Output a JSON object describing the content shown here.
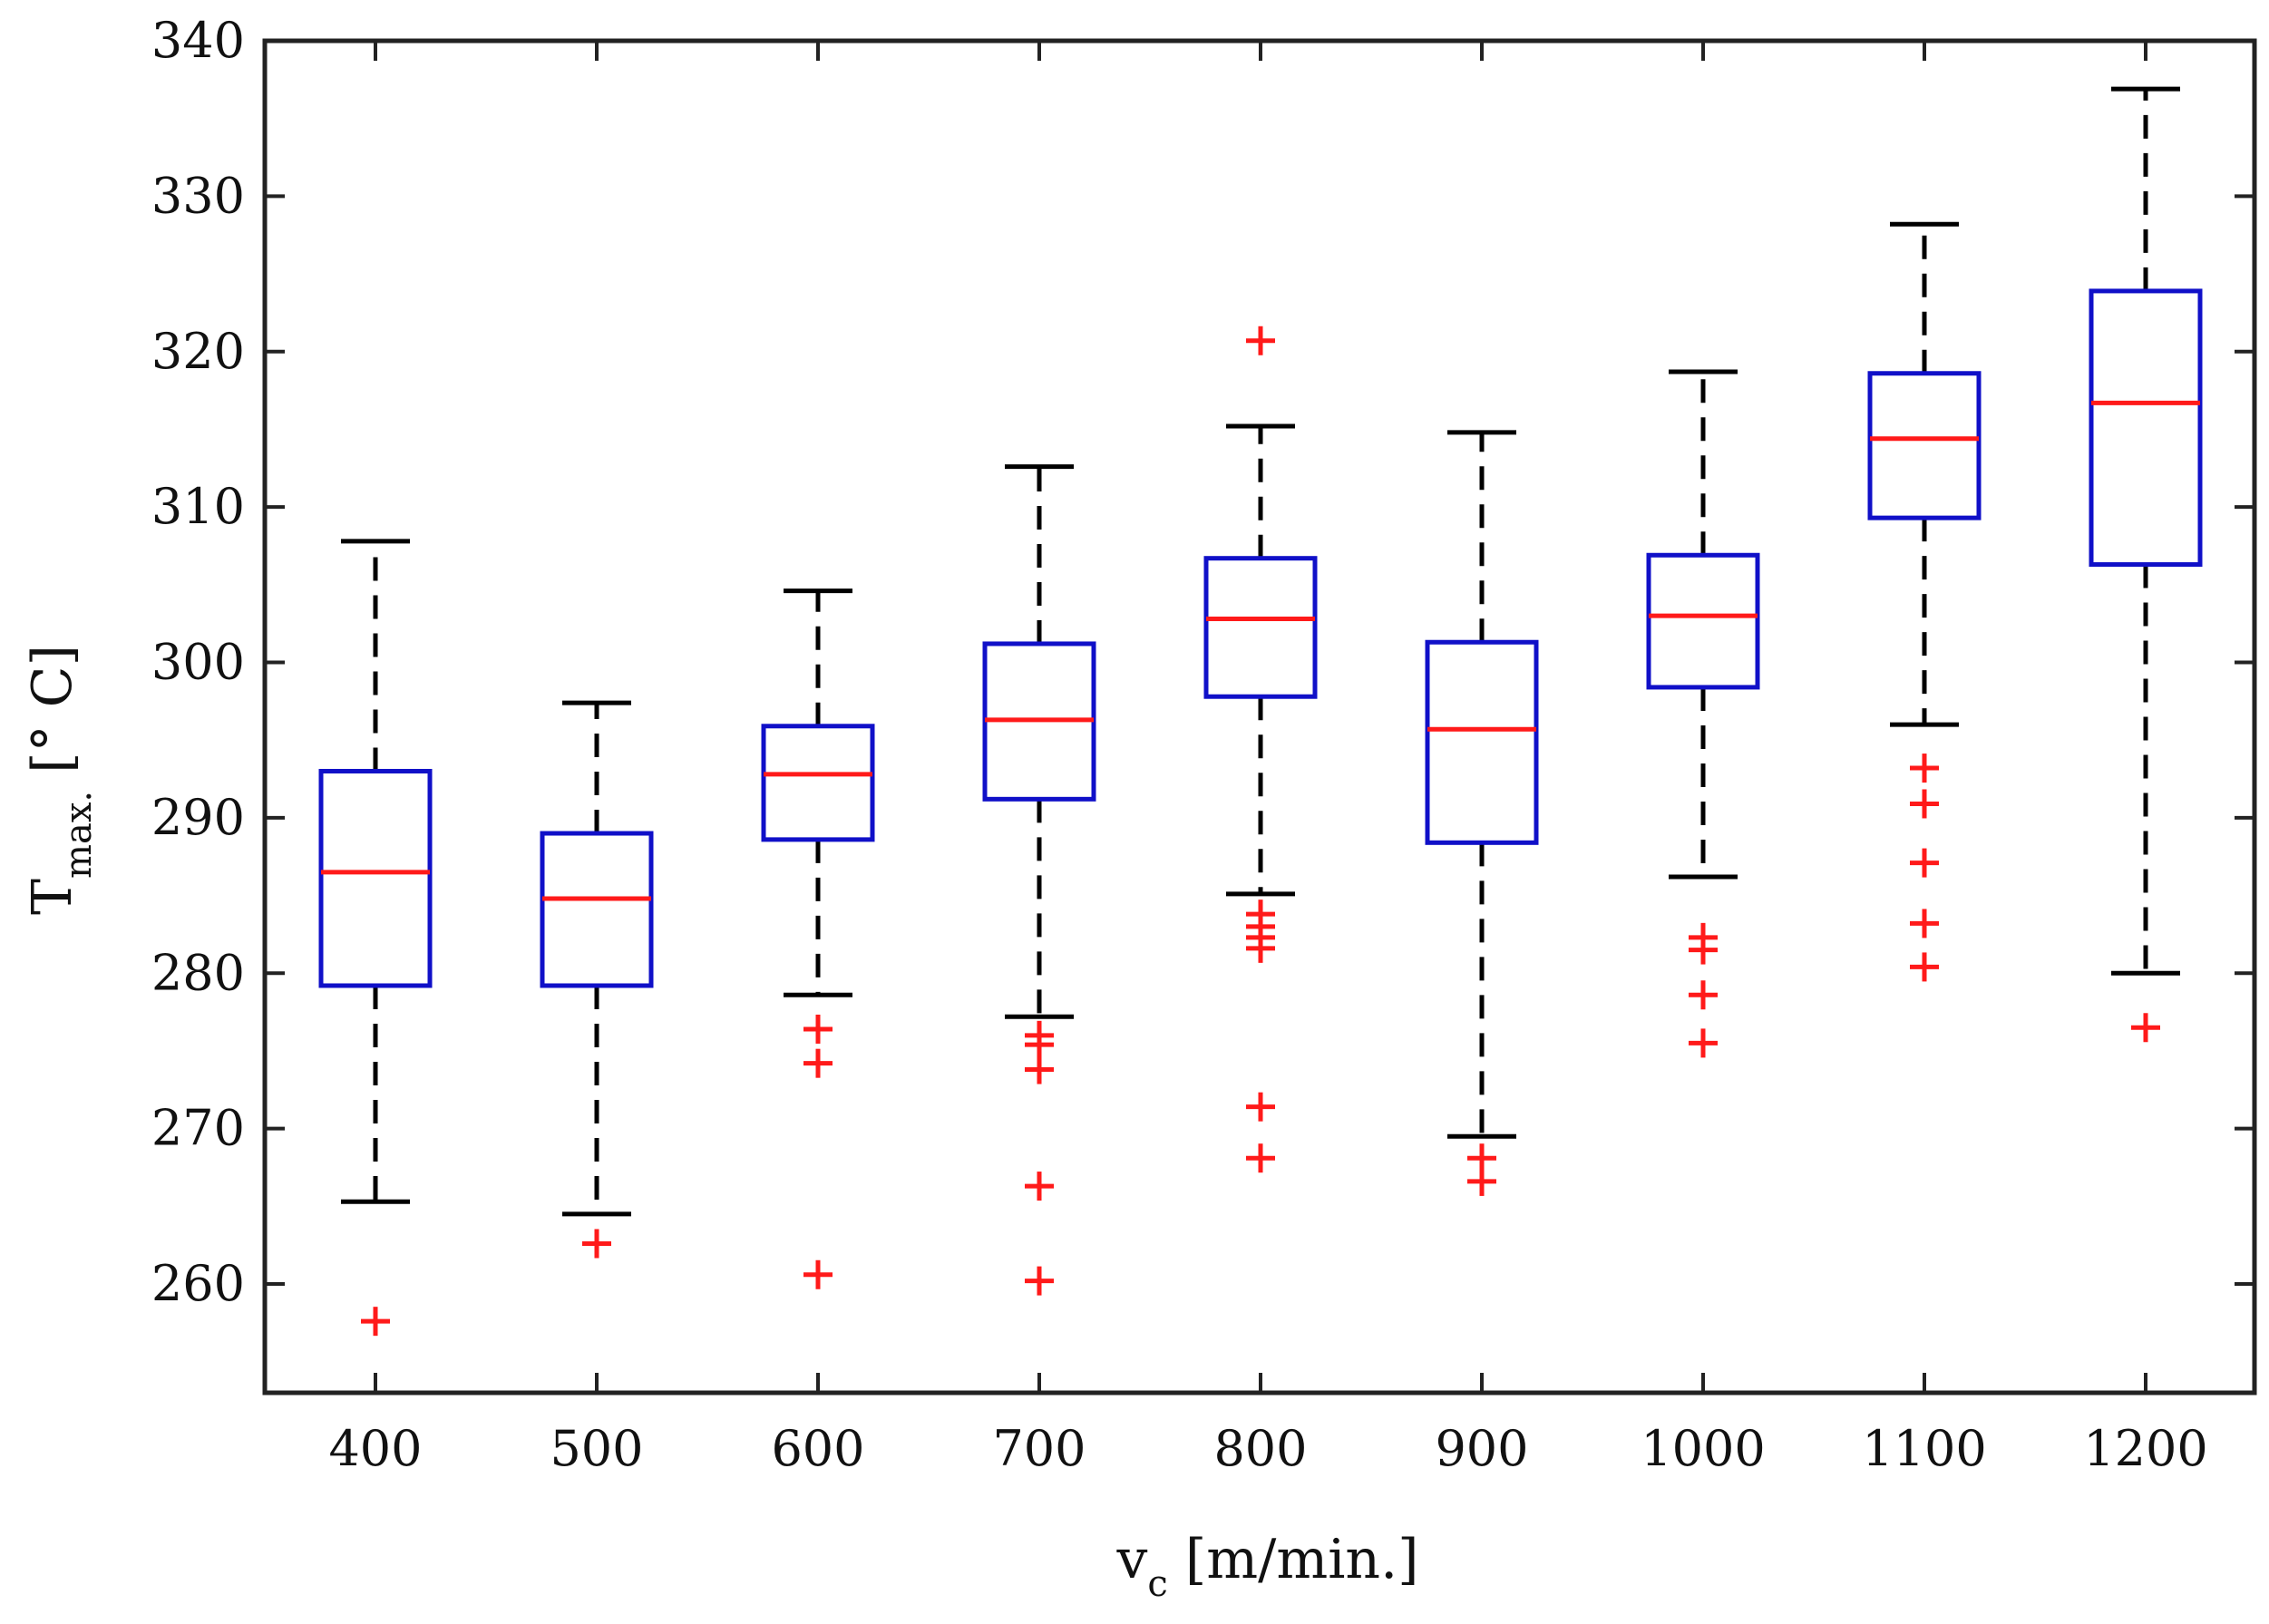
{
  "chart_data": {
    "type": "boxplot",
    "title": "",
    "xlabel": {
      "main": "v",
      "sub": "c",
      "unit": "[m/min.]"
    },
    "ylabel": {
      "main": "T",
      "sub": "max.",
      "unit": "[° C]"
    },
    "ylim": [
      253,
      340
    ],
    "yticks": [
      260,
      270,
      280,
      290,
      300,
      310,
      320,
      330,
      340
    ],
    "grid": false,
    "colors": {
      "box": "#1010c8",
      "median": "#ff1a1a",
      "whisker": "#000000",
      "outlier": "#ff1a1a",
      "axis": "#222222"
    },
    "categories": [
      "400",
      "500",
      "600",
      "700",
      "800",
      "900",
      "1000",
      "1100",
      "1200"
    ],
    "boxes": [
      {
        "category": "400",
        "whisker_low": 265.3,
        "q1": 279.2,
        "median": 286.5,
        "q3": 293.0,
        "whisker_high": 307.8,
        "outliers": [
          257.6
        ]
      },
      {
        "category": "500",
        "whisker_low": 264.5,
        "q1": 279.2,
        "median": 284.8,
        "q3": 289.0,
        "whisker_high": 297.4,
        "outliers": [
          262.6
        ]
      },
      {
        "category": "600",
        "whisker_low": 278.6,
        "q1": 288.6,
        "median": 292.8,
        "q3": 295.9,
        "whisker_high": 304.6,
        "outliers": [
          276.4,
          274.2,
          260.6
        ]
      },
      {
        "category": "700",
        "whisker_low": 277.2,
        "q1": 291.2,
        "median": 296.3,
        "q3": 301.2,
        "whisker_high": 312.6,
        "outliers": [
          276.0,
          275.4,
          273.8,
          266.3,
          260.2
        ]
      },
      {
        "category": "800",
        "whisker_low": 285.1,
        "q1": 297.8,
        "median": 302.8,
        "q3": 306.7,
        "whisker_high": 315.2,
        "outliers": [
          320.7,
          283.8,
          283.0,
          282.3,
          281.6,
          271.4,
          268.1
        ]
      },
      {
        "category": "900",
        "whisker_low": 269.5,
        "q1": 288.4,
        "median": 295.7,
        "q3": 301.3,
        "whisker_high": 314.8,
        "outliers": [
          268.1,
          266.6
        ]
      },
      {
        "category": "1000",
        "whisker_low": 286.2,
        "q1": 298.4,
        "median": 303.0,
        "q3": 306.9,
        "whisker_high": 318.7,
        "outliers": [
          282.3,
          281.5,
          278.6,
          275.5
        ]
      },
      {
        "category": "1100",
        "whisker_low": 296.0,
        "q1": 309.3,
        "median": 314.4,
        "q3": 318.6,
        "whisker_high": 328.2,
        "outliers": [
          293.2,
          290.9,
          287.1,
          283.2,
          280.4
        ]
      },
      {
        "category": "1200",
        "whisker_low": 280.0,
        "q1": 306.3,
        "median": 316.7,
        "q3": 323.9,
        "whisker_high": 336.9,
        "outliers": [
          276.5
        ]
      }
    ]
  }
}
